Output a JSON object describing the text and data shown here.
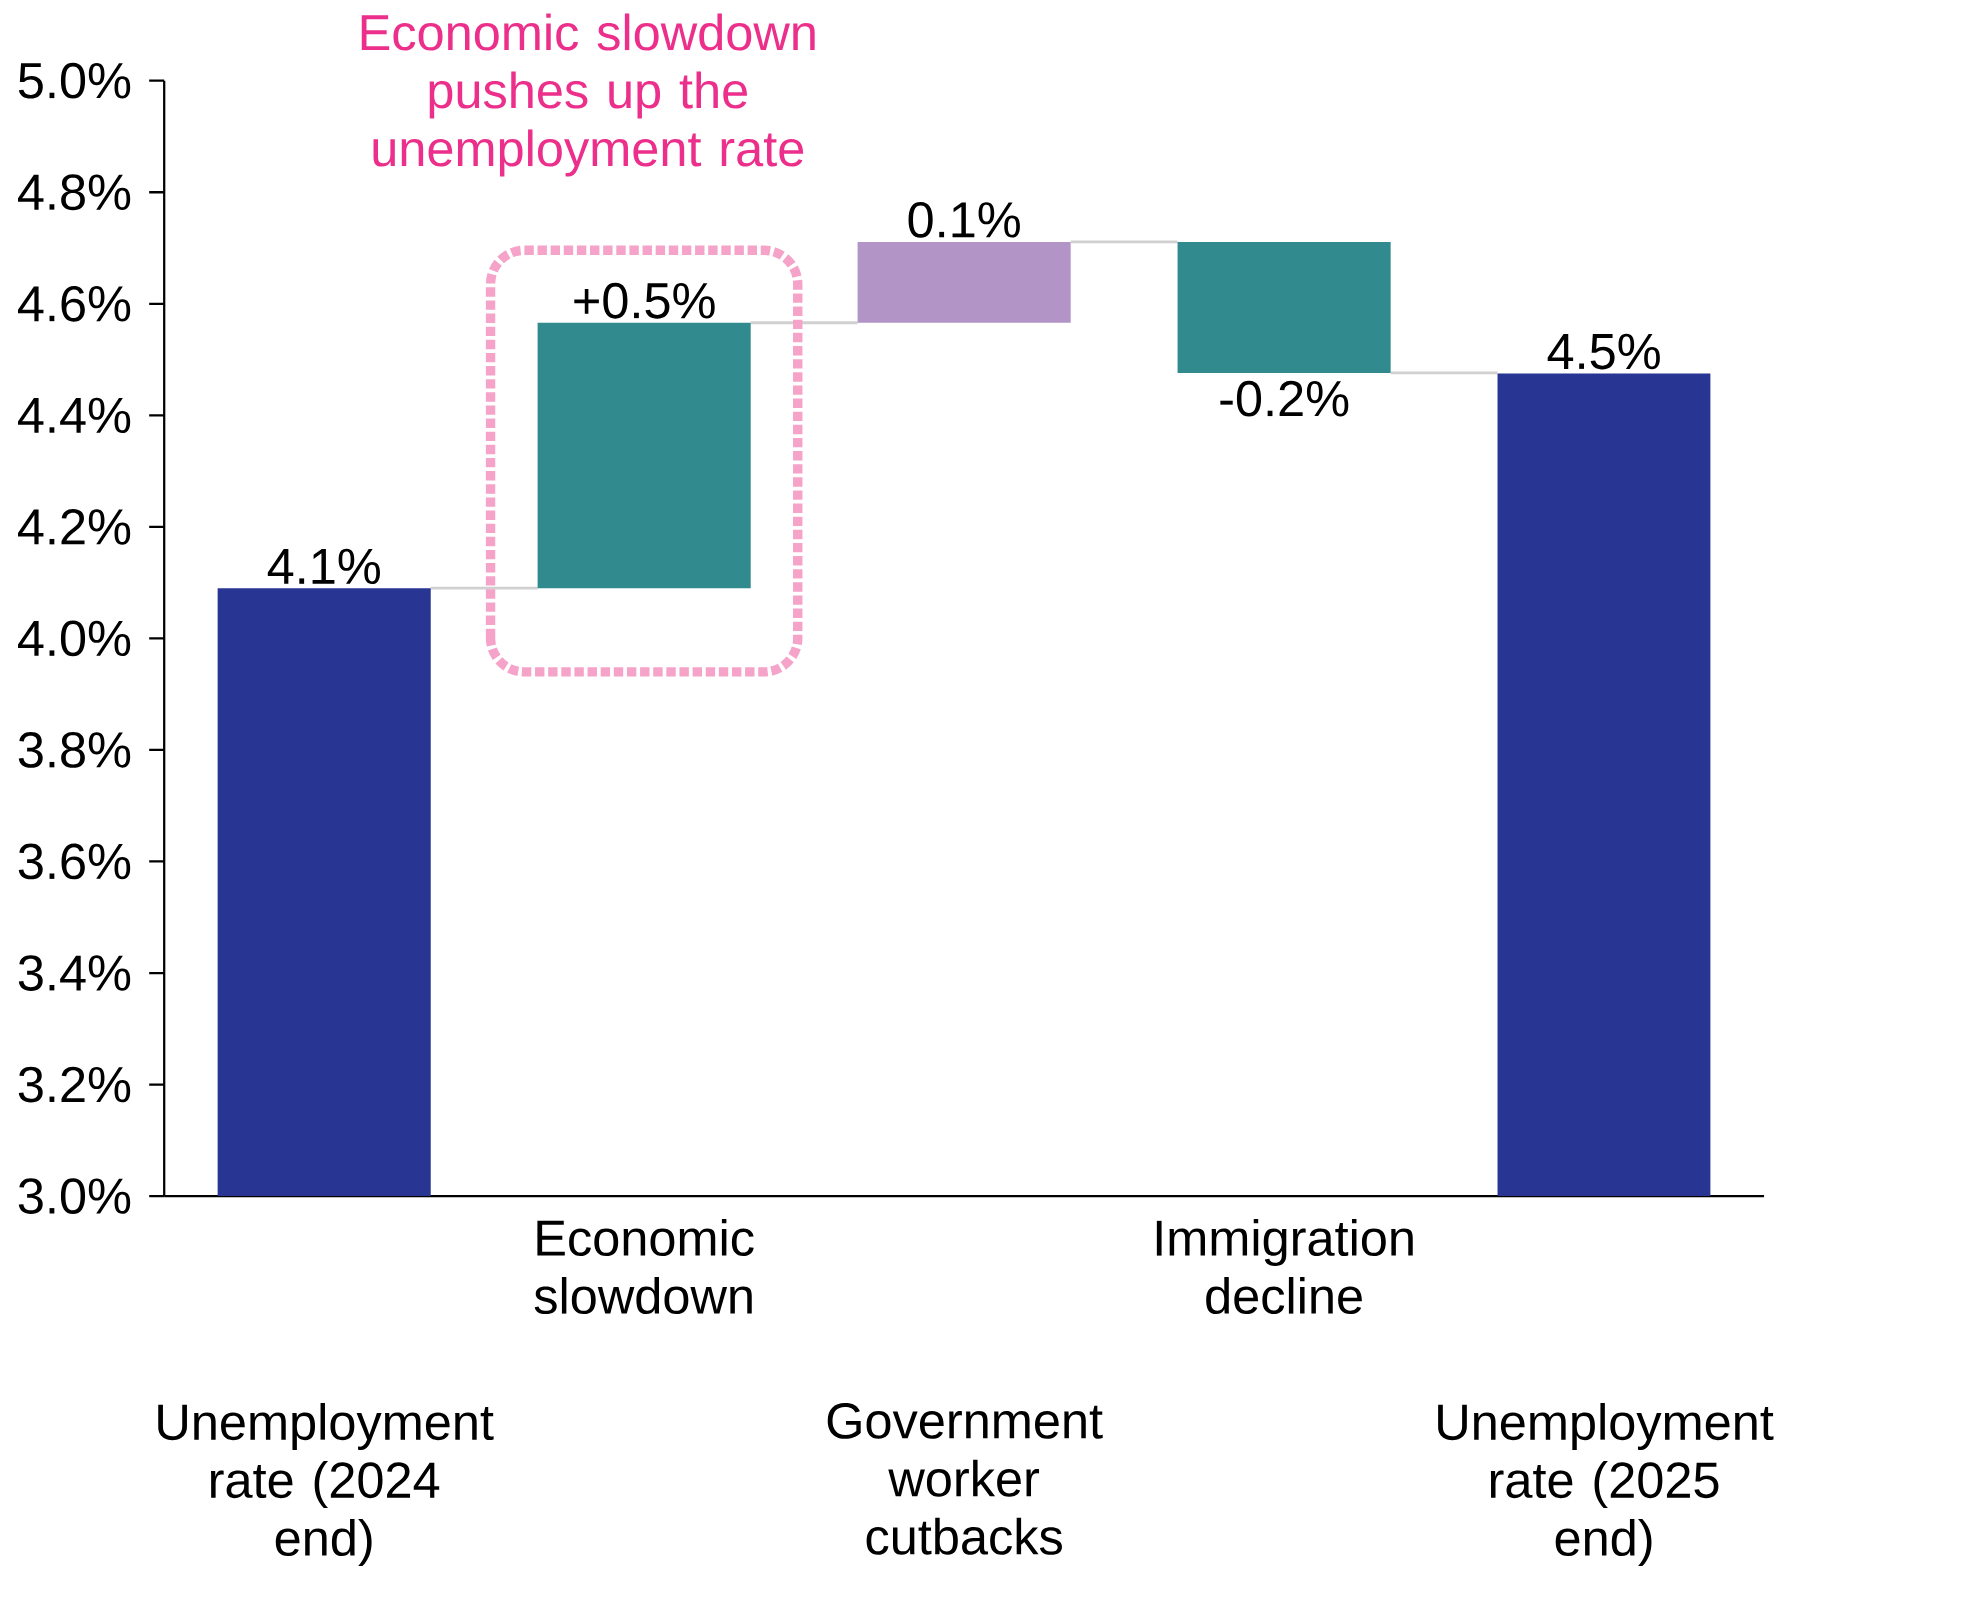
{
  "chart_data": {
    "type": "bar",
    "categories": [
      "Unemployment rate (2024 end)",
      "Economic slowdown",
      "Government worker cutbacks",
      "Immigration decline",
      "Unemployment rate (2025 end)"
    ],
    "values": [
      4.09,
      0.476,
      0.145,
      -0.235,
      4.475
    ],
    "base": [
      0,
      4.09,
      4.566,
      4.711,
      0
    ],
    "colors": [
      "#283593",
      "#318b8e",
      "#b294c7",
      "#318b8e",
      "#283593"
    ],
    "value_labels": [
      "4.1%",
      "+0.5%",
      "0.1%",
      "-0.2%",
      "4.5%"
    ],
    "ylim": [
      3.0,
      5.0
    ],
    "yticks": [
      {
        "value": 3.0,
        "label": "3.0%"
      },
      {
        "value": 3.2,
        "label": "3.2%"
      },
      {
        "value": 3.4,
        "label": "3.4%"
      },
      {
        "value": 3.6,
        "label": "3.6%"
      },
      {
        "value": 3.8,
        "label": "3.8%"
      },
      {
        "value": 4.0,
        "label": "4.0%"
      },
      {
        "value": 4.2,
        "label": "4.2%"
      },
      {
        "value": 4.4,
        "label": "4.4%"
      },
      {
        "value": 4.6,
        "label": "4.6%"
      },
      {
        "value": 4.8,
        "label": "4.8%"
      },
      {
        "value": 5.0,
        "label": "5.0%"
      }
    ],
    "annotations": [
      "Economic slowdown pushes up the unemployment rate"
    ]
  }
}
